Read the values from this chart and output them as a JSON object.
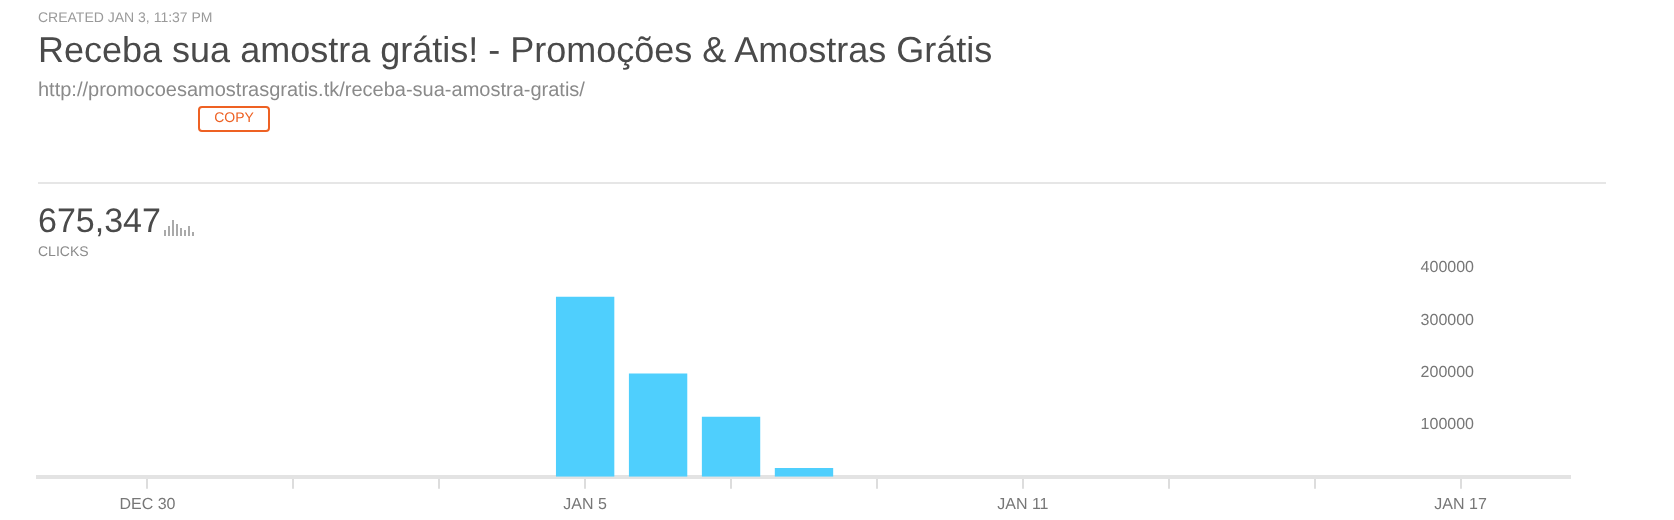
{
  "chart_data": {
    "type": "bar",
    "title": "Receba sua amostra grátis! - Promoções & Amostras Grátis",
    "annotations": [
      "CREATED JAN 3, 11:37 PM",
      "http://promocoesamostrasgratis.tk/receba-sua-amostra-gratis/",
      "COPY",
      "675,347",
      "CLICKS"
    ],
    "categories": [
      null,
      "DEC 30",
      null,
      null,
      null,
      null,
      null,
      "JAN 5",
      null,
      null,
      null,
      null,
      null,
      "JAN 11",
      null,
      null,
      null,
      null,
      null,
      "JAN 17",
      null
    ],
    "values": [
      0,
      0,
      0,
      0,
      0,
      0,
      0,
      345000,
      198000,
      115000,
      17000,
      0,
      0,
      0,
      0,
      0,
      0,
      0,
      0,
      0,
      0
    ],
    "color": "#4fcffd",
    "ylim": [
      0,
      400000
    ],
    "yticks": [
      100000,
      200000,
      300000,
      400000
    ],
    "grid": false
  }
}
